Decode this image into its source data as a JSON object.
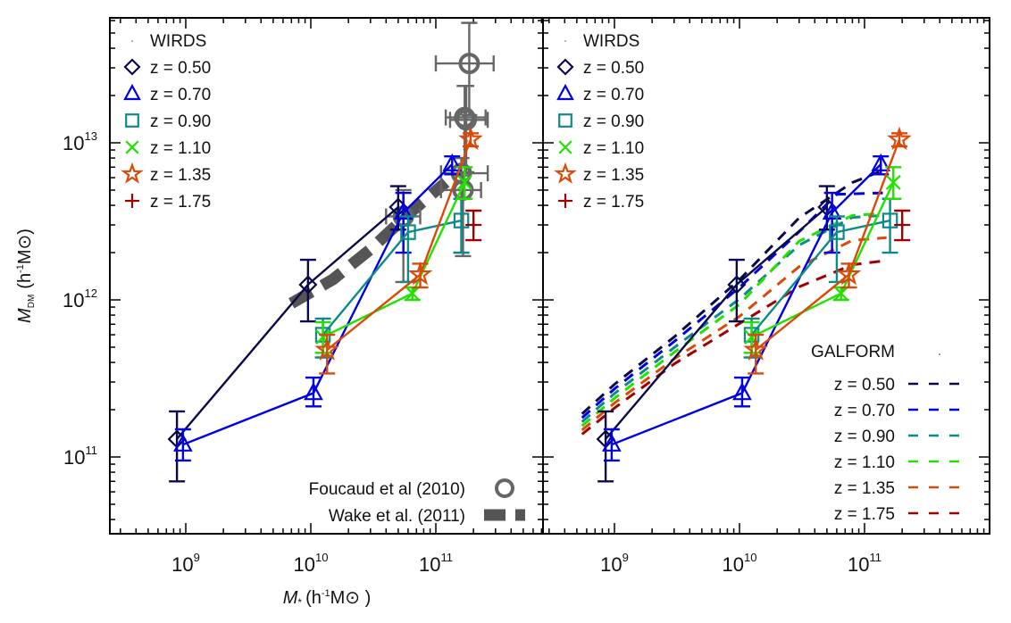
{
  "chart_data": [
    {
      "panel": "left",
      "type": "line",
      "xscale": "log",
      "yscale": "log",
      "xlabel": "M* (h^-1 M⊙)",
      "ylabel": "M_DM (h^-1 M⊙)",
      "xlim": [
        250000000.0,
        720000000000.0
      ],
      "ylim": [
        32000000000.0,
        63000000000000.0
      ],
      "xticks": [
        {
          "value": 1000000000.0,
          "base": "10",
          "exp": "9"
        },
        {
          "value": 10000000000.0,
          "base": "10",
          "exp": "10"
        },
        {
          "value": 100000000000.0,
          "base": "10",
          "exp": "11"
        }
      ],
      "yticks": [
        {
          "value": 100000000000.0,
          "base": "10",
          "exp": "11"
        },
        {
          "value": 1000000000000.0,
          "base": "10",
          "exp": "12"
        },
        {
          "value": 10000000000000.0,
          "base": "10",
          "exp": "13"
        }
      ],
      "legend_title": "WIRDS",
      "legend_position": "top-left",
      "series": [
        {
          "name": "z = 0.50",
          "marker": "diamond",
          "color": "#0a0a4a",
          "x": [
            850000000.0,
            9500000000.0,
            50000000000.0
          ],
          "y": [
            130000000000.0,
            1250000000000.0,
            3900000000000.0
          ],
          "yerr_low": [
            70000000000.0,
            730000000000.0,
            2800000000000.0
          ],
          "yerr_high": [
            195000000000.0,
            1800000000000.0,
            5300000000000.0
          ]
        },
        {
          "name": "z = 0.70",
          "marker": "triangle",
          "color": "#0000e6",
          "x": [
            950000000.0,
            10500000000.0,
            55000000000.0,
            135000000000.0
          ],
          "y": [
            120000000000.0,
            255000000000.0,
            3600000000000.0,
            7300000000000.0
          ],
          "yerr_low": [
            95000000000.0,
            210000000000.0,
            2000000000000.0,
            6300000000000.0
          ],
          "yerr_high": [
            150000000000.0,
            320000000000.0,
            4800000000000.0,
            8200000000000.0
          ]
        },
        {
          "name": "z = 0.90",
          "marker": "square",
          "color": "#0e8a8a",
          "x": [
            12500000000.0,
            60000000000.0,
            160000000000.0
          ],
          "y": [
            600000000000.0,
            2700000000000.0,
            3200000000000.0
          ],
          "yerr_low": [
            430000000000.0,
            1300000000000.0,
            2000000000000.0
          ],
          "yerr_high": [
            760000000000.0,
            3400000000000.0,
            4400000000000.0
          ]
        },
        {
          "name": "z = 1.10",
          "marker": "x",
          "color": "#22e000",
          "x": [
            12500000000.0,
            65000000000.0,
            170000000000.0
          ],
          "y": [
            580000000000.0,
            1100000000000.0,
            5600000000000.0
          ],
          "yerr_low": [
            460000000000.0,
            1000000000000.0,
            4400000000000.0
          ],
          "yerr_high": [
            720000000000.0,
            1200000000000.0,
            7000000000000.0
          ]
        },
        {
          "name": "z = 1.35",
          "marker": "star",
          "color": "#d94a0a",
          "x": [
            13500000000.0,
            75000000000.0,
            190000000000.0
          ],
          "y": [
            480000000000.0,
            1450000000000.0,
            10500000000000.0
          ],
          "yerr_low": [
            340000000000.0,
            1200000000000.0,
            9500000000000.0
          ],
          "yerr_high": [
            600000000000.0,
            1700000000000.0,
            11500000000000.0
          ]
        },
        {
          "name": "z = 1.75",
          "marker": "plus",
          "color": "#a00000",
          "x": [
            200000000000.0
          ],
          "y": [
            3000000000000.0
          ],
          "yerr_low": [
            2400000000000.0
          ],
          "yerr_high": [
            3700000000000.0
          ]
        }
      ],
      "comparison": [
        {
          "name": "Foucaud et al (2010)",
          "marker": "circle",
          "color": "#666666",
          "x": [
            55000000000.0,
            165000000000.0,
            160000000000.0,
            170000000000.0,
            175000000000.0,
            185000000000.0
          ],
          "y": [
            3400000000000.0,
            5000000000000.0,
            6400000000000.0,
            14500000000000.0,
            14000000000000.0,
            32000000000000.0
          ],
          "xerr_low": [
            40000000000.0,
            110000000000.0,
            110000000000.0,
            120000000000.0,
            130000000000.0,
            100000000000.0
          ],
          "xerr_high": [
            75000000000.0,
            230000000000.0,
            260000000000.0,
            250000000000.0,
            260000000000.0,
            290000000000.0
          ],
          "yerr_low": [
            1300000000000.0,
            1900000000000.0,
            2000000000000.0,
            6500000000000.0,
            6500000000000.0,
            15000000000000.0
          ],
          "yerr_high": [
            5000000000000.0,
            6200000000000.0,
            8000000000000.0,
            23000000000000.0,
            23000000000000.0,
            58000000000000.0
          ]
        },
        {
          "name": "Wake et al. (2011)",
          "style": "thick-dashed",
          "color": "#555555",
          "x": [
            7000000000.0,
            15000000000.0,
            30000000000.0,
            60000000000.0,
            120000000000.0
          ],
          "y": [
            950000000000.0,
            1350000000000.0,
            2100000000000.0,
            3500000000000.0,
            5600000000000.0
          ]
        }
      ],
      "annotations": [
        "Foucaud et al (2010)",
        "Wake et al. (2011)"
      ]
    },
    {
      "panel": "right",
      "type": "line",
      "xscale": "log",
      "yscale": "log",
      "xlim": [
        250000000.0,
        720000000000.0
      ],
      "ylim": [
        32000000000.0,
        63000000000000.0
      ],
      "xticks": [
        {
          "value": 1000000000.0,
          "base": "10",
          "exp": "9"
        },
        {
          "value": 10000000000.0,
          "base": "10",
          "exp": "10"
        },
        {
          "value": 100000000000.0,
          "base": "10",
          "exp": "11"
        }
      ],
      "legend_title": "WIRDS",
      "legend_position": "top-left",
      "model_legend_title": "GALFORM",
      "model_legend_position": "bottom-right",
      "series_ref": "same WIRDS data as left panel",
      "galform": [
        {
          "name": "z = 0.50",
          "color": "#0a0a4a",
          "x": [
            550000000.0,
            1000000000.0,
            3000000000.0,
            10000000000.0,
            30000000000.0,
            80000000000.0,
            140000000000.0
          ],
          "y": [
            175000000000.0,
            270000000000.0,
            540000000000.0,
            1250000000000.0,
            3100000000000.0,
            5200000000000.0,
            6200000000000.0
          ]
        },
        {
          "name": "z = 0.70",
          "color": "#0000e6",
          "x": [
            550000000.0,
            1000000000.0,
            3000000000.0,
            10000000000.0,
            30000000000.0,
            60000000000.0,
            140000000000.0
          ],
          "y": [
            170000000000.0,
            260000000000.0,
            520000000000.0,
            1150000000000.0,
            2600000000000.0,
            4500000000000.0,
            4600000000000.0
          ]
        },
        {
          "name": "z = 0.90",
          "color": "#0e8a8a",
          "x": [
            550000000.0,
            1000000000.0,
            3000000000.0,
            10000000000.0,
            30000000000.0,
            80000000000.0,
            140000000000.0
          ],
          "y": [
            165000000000.0,
            250000000000.0,
            490000000000.0,
            1000000000000.0,
            2200000000000.0,
            3300000000000.0,
            3400000000000.0
          ]
        },
        {
          "name": "z = 1.10",
          "color": "#22e000",
          "x": [
            550000000.0,
            1000000000.0,
            3000000000.0,
            10000000000.0,
            30000000000.0,
            80000000000.0,
            140000000000.0
          ],
          "y": [
            160000000000.0,
            240000000000.0,
            470000000000.0,
            950000000000.0,
            2400000000000.0,
            3500000000000.0,
            3600000000000.0
          ]
        },
        {
          "name": "z = 1.35",
          "color": "#d94a0a",
          "x": [
            550000000.0,
            1000000000.0,
            3000000000.0,
            10000000000.0,
            30000000000.0,
            80000000000.0,
            150000000000.0
          ],
          "y": [
            155000000000.0,
            230000000000.0,
            440000000000.0,
            820000000000.0,
            1700000000000.0,
            2500000000000.0,
            2600000000000.0
          ]
        },
        {
          "name": "z = 1.75",
          "color": "#a00000",
          "x": [
            550000000.0,
            1000000000.0,
            3000000000.0,
            10000000000.0,
            30000000000.0,
            80000000000.0,
            140000000000.0
          ],
          "y": [
            150000000000.0,
            220000000000.0,
            420000000000.0,
            760000000000.0,
            1300000000000.0,
            1800000000000.0,
            1900000000000.0
          ]
        }
      ]
    }
  ],
  "labels": {
    "xlabel_main": "M",
    "xlabel_sub": "*",
    "xlabel_unit_open": "(h",
    "xlabel_exp": "-1",
    "xlabel_unit_close": "M⊙ )",
    "ylabel_main": "M",
    "ylabel_sub": "DM",
    "ylabel_unit_open": "(h",
    "ylabel_exp": "-1",
    "ylabel_unit_close": "M⊙)"
  }
}
